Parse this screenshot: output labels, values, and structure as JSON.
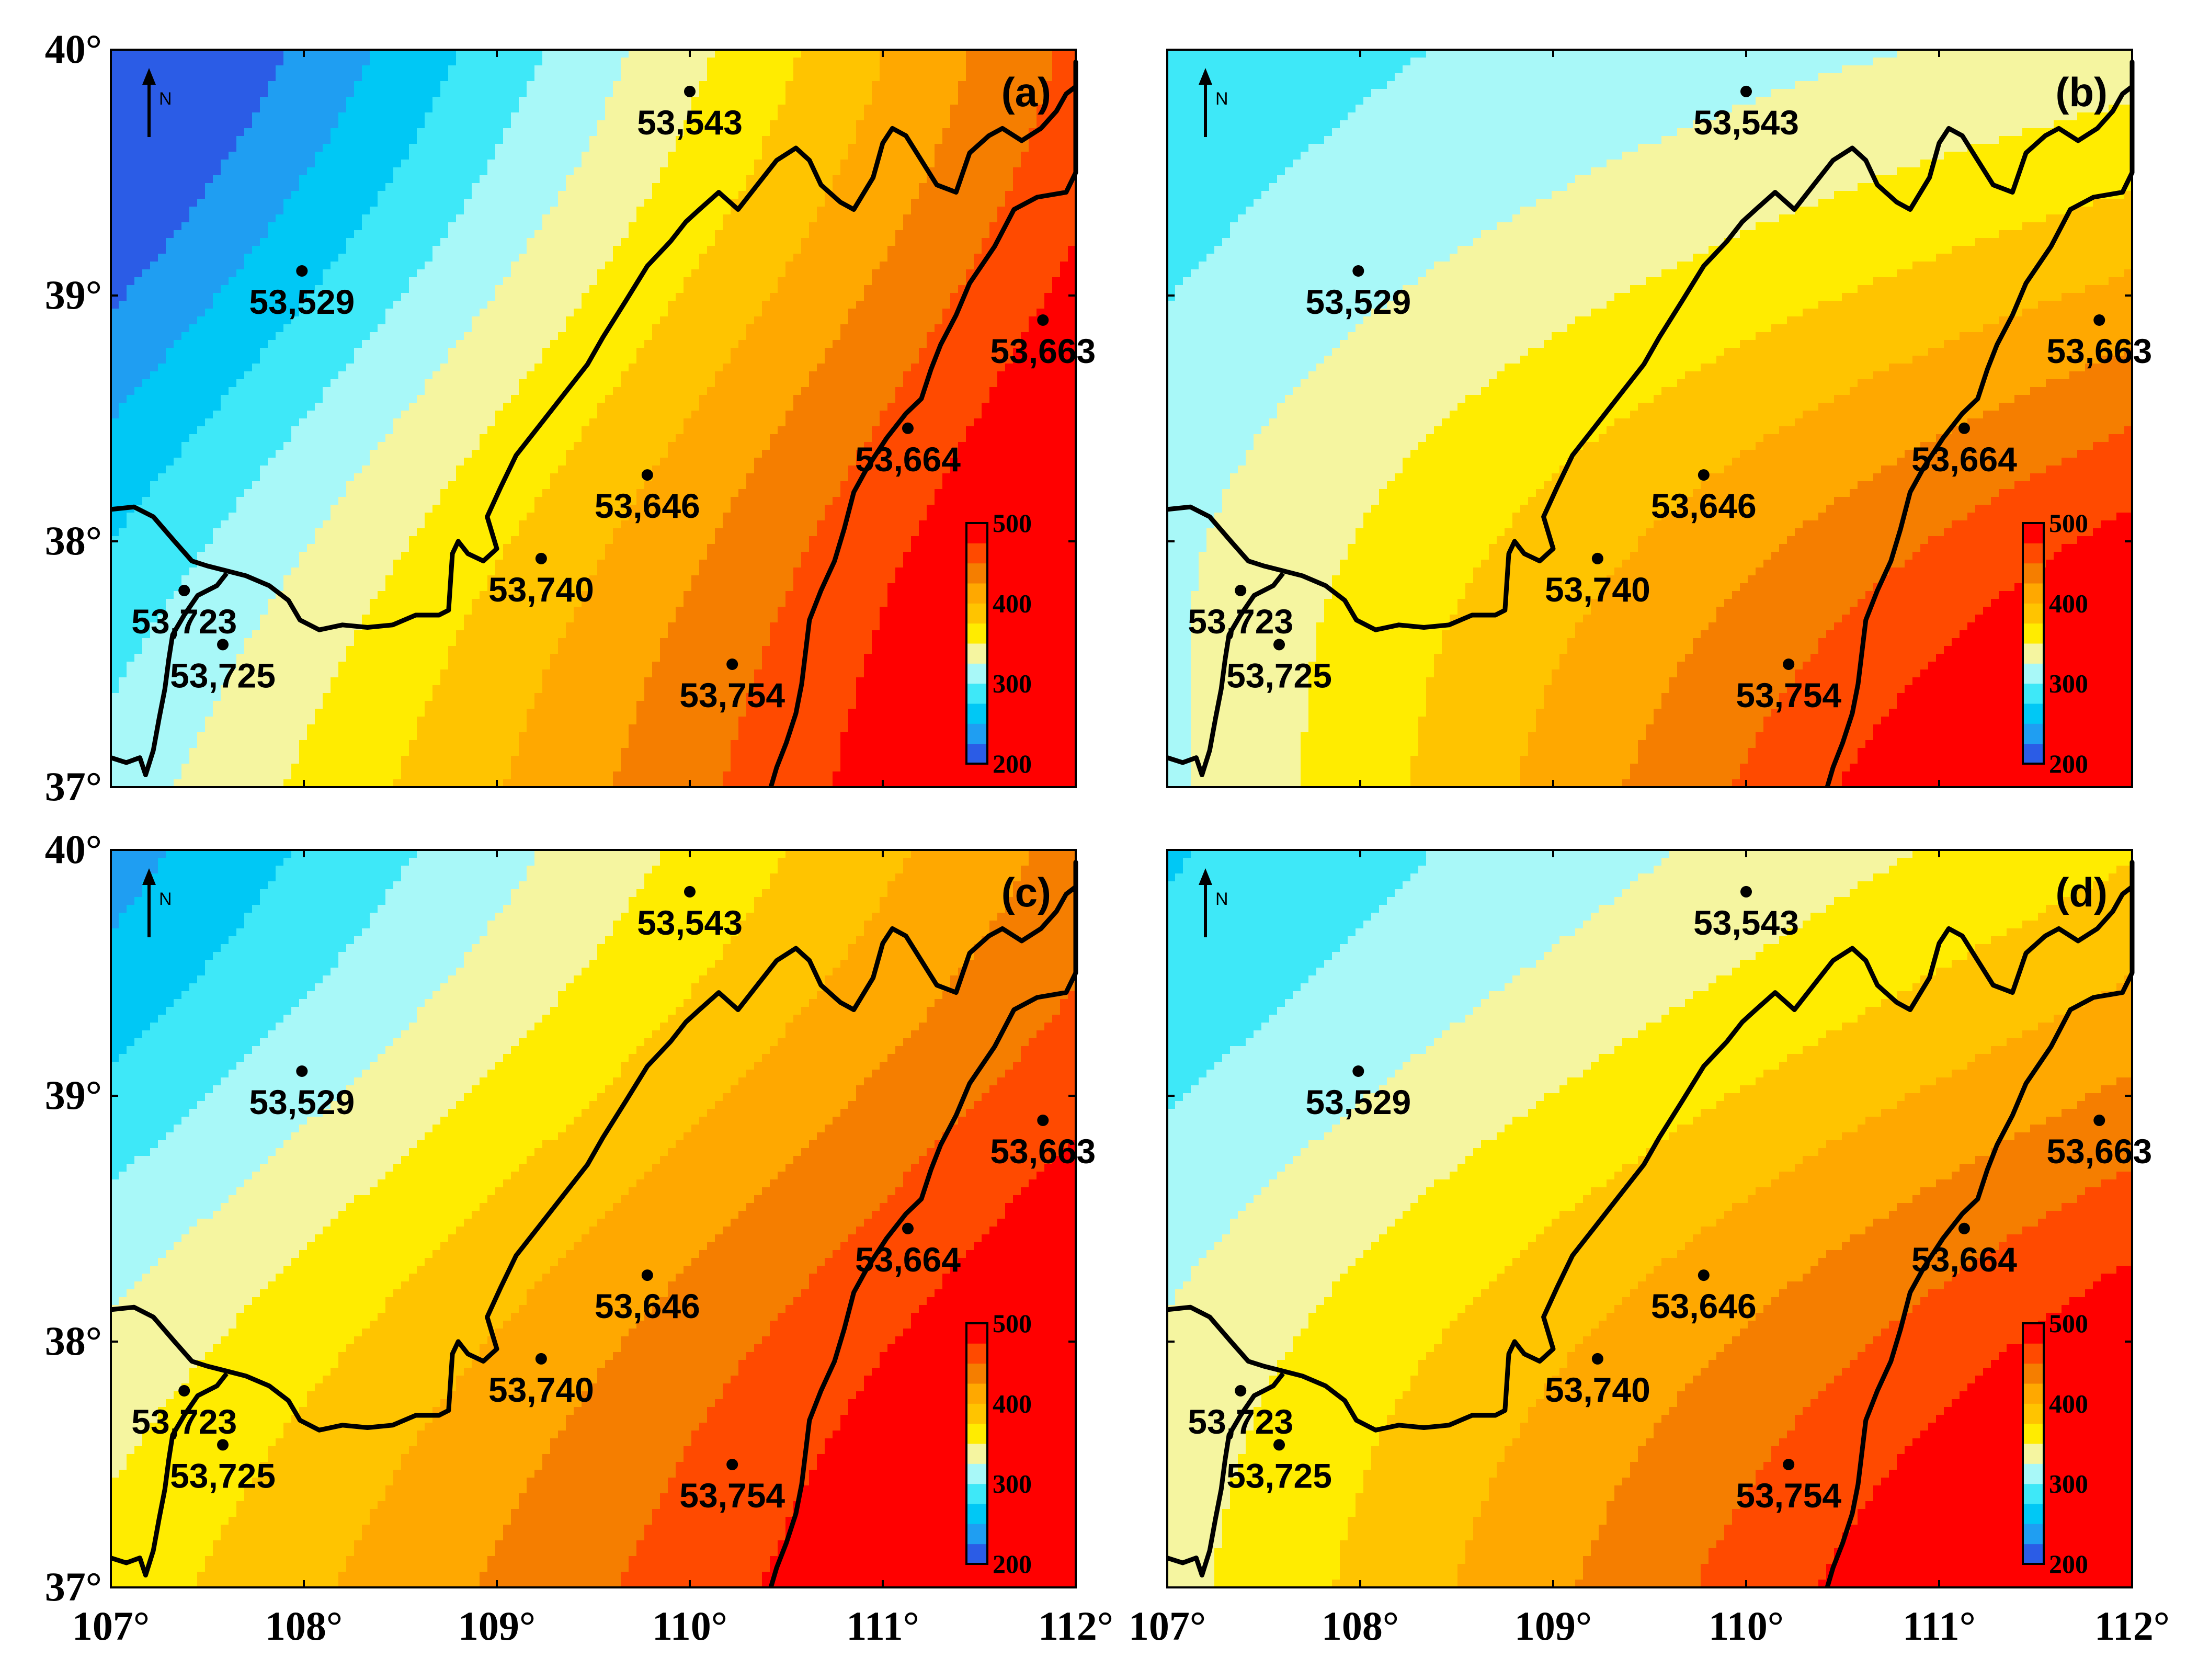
{
  "map": {
    "extent": {
      "lon": [
        107,
        112
      ],
      "lat": [
        37,
        40
      ]
    },
    "x_ticks": [
      {
        "lon": 107,
        "label": "107°"
      },
      {
        "lon": 108,
        "label": "108°"
      },
      {
        "lon": 109,
        "label": "109°"
      },
      {
        "lon": 110,
        "label": "110°"
      },
      {
        "lon": 111,
        "label": "111°"
      },
      {
        "lon": 112,
        "label": "112°"
      }
    ],
    "y_ticks": [
      {
        "lat": 40,
        "label": "40°"
      },
      {
        "lat": 39,
        "label": "39°"
      },
      {
        "lat": 38,
        "label": "38°"
      },
      {
        "lat": 37,
        "label": "37°"
      }
    ],
    "north_arrow_label": "N",
    "colorbar": {
      "min": 200,
      "max": 500,
      "tick_labels": [
        "500",
        "400",
        "300",
        "200"
      ],
      "colors": [
        "#2b5ce6",
        "#1f9ef2",
        "#00c8f5",
        "#3ee8f8",
        "#a8f8f8",
        "#f5f5a0",
        "#ffec00",
        "#ffc400",
        "#ffa800",
        "#f57e00",
        "#ff4a00",
        "#ff0000"
      ]
    },
    "stations": [
      {
        "id": "53,543",
        "lon": 110.0,
        "lat": 39.83
      },
      {
        "id": "53,529",
        "lon": 107.99,
        "lat": 39.1
      },
      {
        "id": "53,663",
        "lon": 111.83,
        "lat": 38.9
      },
      {
        "id": "53,664",
        "lon": 111.13,
        "lat": 38.46
      },
      {
        "id": "53,646",
        "lon": 109.78,
        "lat": 38.27
      },
      {
        "id": "53,740",
        "lon": 109.23,
        "lat": 37.93
      },
      {
        "id": "53,723",
        "lon": 107.38,
        "lat": 37.8
      },
      {
        "id": "53,725",
        "lon": 107.58,
        "lat": 37.58
      },
      {
        "id": "53,754",
        "lon": 110.22,
        "lat": 37.5
      }
    ],
    "panels": [
      {
        "label": "(a)",
        "field_params": {
          "v0": 310,
          "gx": 44,
          "gy": -43,
          "cross": 5
        }
      },
      {
        "label": "(b)",
        "field_params": {
          "v0": 318,
          "gx": 45,
          "gy": -8,
          "cross": -14
        }
      },
      {
        "label": "(c)",
        "field_params": {
          "v0": 360,
          "gx": 34,
          "gy": -38,
          "cross": 2
        }
      },
      {
        "label": "(d)",
        "field_params": {
          "v0": 340,
          "gx": 40,
          "gy": -20,
          "cross": -8
        }
      }
    ]
  }
}
